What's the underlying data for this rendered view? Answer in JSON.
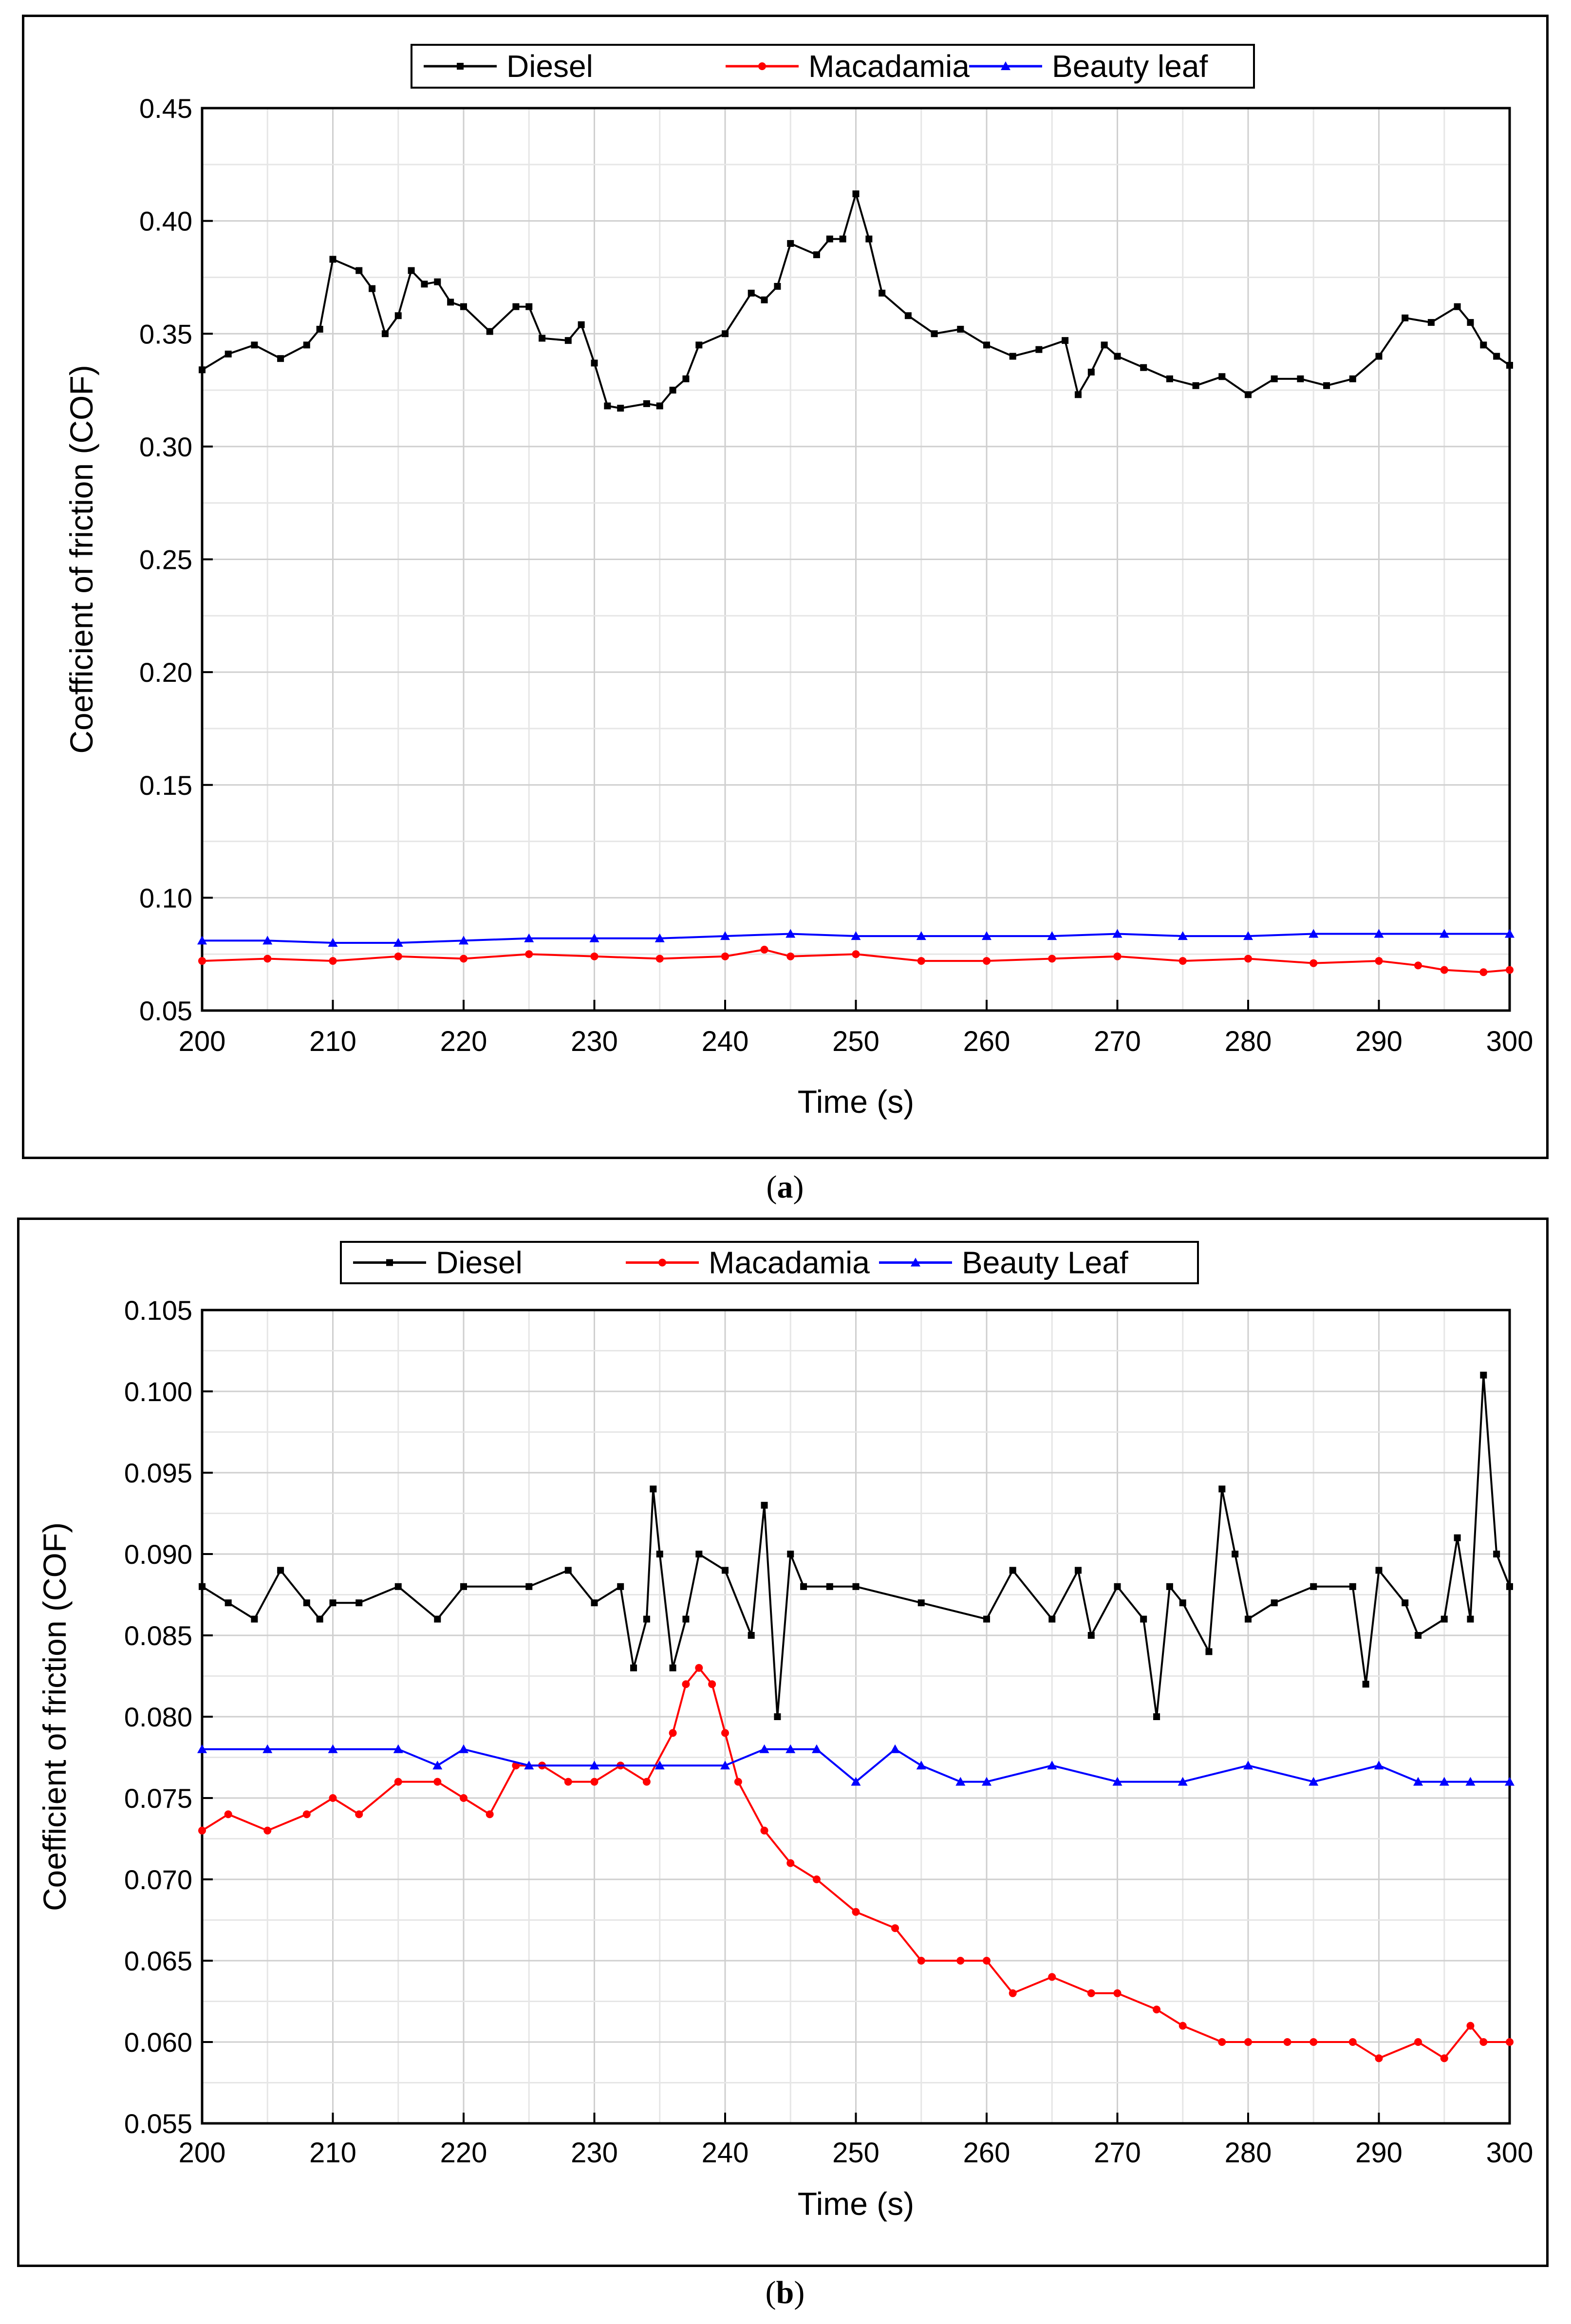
{
  "panels": [
    {
      "sublabel": "a",
      "chart_data": {
        "type": "line",
        "title": "",
        "xlabel": "Time (s)",
        "ylabel": "Coefficient of friction (COF)",
        "xlim": [
          200,
          300
        ],
        "ylim": [
          0.05,
          0.45
        ],
        "xticks": [
          "200",
          "210",
          "220",
          "230",
          "240",
          "250",
          "260",
          "270",
          "280",
          "290",
          "300"
        ],
        "yticks": [
          "0.05",
          "0.10",
          "0.15",
          "0.20",
          "0.25",
          "0.30",
          "0.35",
          "0.40",
          "0.45"
        ],
        "legend_placement": "top-center",
        "grid": true,
        "series": [
          {
            "name": "Diesel",
            "color": "#000000",
            "marker": "square",
            "x": [
              200,
              202,
              204,
              206,
              208,
              209,
              210,
              212,
              213,
              214,
              215,
              216,
              217,
              218,
              219,
              220,
              222,
              224,
              225,
              226,
              228,
              229,
              230,
              231,
              232,
              234,
              235,
              236,
              237,
              238,
              240,
              242,
              243,
              244,
              245,
              247,
              248,
              249,
              250,
              251,
              252,
              254,
              256,
              258,
              260,
              262,
              264,
              266,
              267,
              268,
              269,
              270,
              272,
              274,
              276,
              278,
              280,
              282,
              284,
              286,
              288,
              290,
              292,
              294,
              296,
              297,
              298,
              299,
              300
            ],
            "y": [
              0.334,
              0.341,
              0.345,
              0.339,
              0.345,
              0.352,
              0.383,
              0.378,
              0.37,
              0.35,
              0.358,
              0.378,
              0.372,
              0.373,
              0.364,
              0.362,
              0.351,
              0.362,
              0.362,
              0.348,
              0.347,
              0.354,
              0.337,
              0.318,
              0.317,
              0.319,
              0.318,
              0.325,
              0.33,
              0.345,
              0.35,
              0.368,
              0.365,
              0.371,
              0.39,
              0.385,
              0.392,
              0.392,
              0.412,
              0.392,
              0.368,
              0.358,
              0.35,
              0.352,
              0.345,
              0.34,
              0.343,
              0.347,
              0.323,
              0.333,
              0.345,
              0.34,
              0.335,
              0.33,
              0.327,
              0.331,
              0.323,
              0.33,
              0.33,
              0.327,
              0.33,
              0.34,
              0.357,
              0.355,
              0.362,
              0.355,
              0.345,
              0.34,
              0.336
            ]
          },
          {
            "name": "Macadamia",
            "color": "#ff0000",
            "marker": "circle",
            "x": [
              200,
              205,
              210,
              215,
              220,
              225,
              230,
              235,
              240,
              243,
              245,
              250,
              255,
              260,
              265,
              270,
              275,
              280,
              285,
              290,
              293,
              295,
              298,
              300
            ],
            "y": [
              0.072,
              0.073,
              0.072,
              0.074,
              0.073,
              0.075,
              0.074,
              0.073,
              0.074,
              0.077,
              0.074,
              0.075,
              0.072,
              0.072,
              0.073,
              0.074,
              0.072,
              0.073,
              0.071,
              0.072,
              0.07,
              0.068,
              0.067,
              0.068
            ]
          },
          {
            "name": "Beauty leaf",
            "color": "#0000ff",
            "marker": "triangle",
            "x": [
              200,
              205,
              210,
              215,
              220,
              225,
              230,
              235,
              240,
              245,
              250,
              255,
              260,
              265,
              270,
              275,
              280,
              285,
              290,
              295,
              300
            ],
            "y": [
              0.081,
              0.081,
              0.08,
              0.08,
              0.081,
              0.082,
              0.082,
              0.082,
              0.083,
              0.084,
              0.083,
              0.083,
              0.083,
              0.083,
              0.084,
              0.083,
              0.083,
              0.084,
              0.084,
              0.084,
              0.084
            ]
          }
        ]
      }
    },
    {
      "sublabel": "b",
      "chart_data": {
        "type": "line",
        "title": "",
        "xlabel": "Time (s)",
        "ylabel": "Coefficient of friction (COF)",
        "xlim": [
          200,
          300
        ],
        "ylim": [
          0.055,
          0.105
        ],
        "xticks": [
          "200",
          "210",
          "220",
          "230",
          "240",
          "250",
          "260",
          "270",
          "280",
          "290",
          "300"
        ],
        "yticks": [
          "0.055",
          "0.060",
          "0.065",
          "0.070",
          "0.075",
          "0.080",
          "0.085",
          "0.090",
          "0.095",
          "0.100",
          "0.105"
        ],
        "legend_placement": "top-center",
        "grid": true,
        "series": [
          {
            "name": "Diesel",
            "color": "#000000",
            "marker": "square",
            "x": [
              200,
              202,
              204,
              206,
              208,
              209,
              210,
              212,
              215,
              218,
              220,
              225,
              228,
              230,
              232,
              233,
              234,
              234.5,
              235,
              236,
              237,
              238,
              240,
              242,
              243,
              244,
              245,
              246,
              248,
              250,
              255,
              260,
              262,
              265,
              267,
              268,
              270,
              272,
              273,
              274,
              275,
              277,
              278,
              279,
              280,
              282,
              285,
              288,
              289,
              290,
              292,
              293,
              295,
              296,
              297,
              298,
              299,
              300
            ],
            "y": [
              0.088,
              0.087,
              0.086,
              0.089,
              0.087,
              0.086,
              0.087,
              0.087,
              0.088,
              0.086,
              0.088,
              0.088,
              0.089,
              0.087,
              0.088,
              0.083,
              0.086,
              0.094,
              0.09,
              0.083,
              0.086,
              0.09,
              0.089,
              0.085,
              0.093,
              0.08,
              0.09,
              0.088,
              0.088,
              0.088,
              0.087,
              0.086,
              0.089,
              0.086,
              0.089,
              0.085,
              0.088,
              0.086,
              0.08,
              0.088,
              0.087,
              0.084,
              0.094,
              0.09,
              0.086,
              0.087,
              0.088,
              0.088,
              0.082,
              0.089,
              0.087,
              0.085,
              0.086,
              0.091,
              0.086,
              0.101,
              0.09,
              0.088
            ]
          },
          {
            "name": "Macadamia",
            "color": "#ff0000",
            "marker": "circle",
            "x": [
              200,
              202,
              205,
              208,
              210,
              212,
              215,
              218,
              220,
              222,
              224,
              226,
              228,
              230,
              232,
              234,
              236,
              237,
              238,
              239,
              240,
              241,
              243,
              245,
              247,
              250,
              253,
              255,
              258,
              260,
              262,
              265,
              268,
              270,
              273,
              275,
              278,
              280,
              283,
              285,
              288,
              290,
              293,
              295,
              297,
              298,
              300
            ],
            "y": [
              0.073,
              0.074,
              0.073,
              0.074,
              0.075,
              0.074,
              0.076,
              0.076,
              0.075,
              0.074,
              0.077,
              0.077,
              0.076,
              0.076,
              0.077,
              0.076,
              0.079,
              0.082,
              0.083,
              0.082,
              0.079,
              0.076,
              0.073,
              0.071,
              0.07,
              0.068,
              0.067,
              0.065,
              0.065,
              0.065,
              0.063,
              0.064,
              0.063,
              0.063,
              0.062,
              0.061,
              0.06,
              0.06,
              0.06,
              0.06,
              0.06,
              0.059,
              0.06,
              0.059,
              0.061,
              0.06,
              0.06
            ]
          },
          {
            "name": "Beauty Leaf",
            "color": "#0000ff",
            "marker": "triangle",
            "x": [
              200,
              205,
              210,
              215,
              218,
              220,
              225,
              230,
              235,
              240,
              243,
              245,
              247,
              250,
              253,
              255,
              258,
              260,
              265,
              270,
              275,
              280,
              285,
              290,
              293,
              295,
              297,
              300
            ],
            "y": [
              0.078,
              0.078,
              0.078,
              0.078,
              0.077,
              0.078,
              0.077,
              0.077,
              0.077,
              0.077,
              0.078,
              0.078,
              0.078,
              0.076,
              0.078,
              0.077,
              0.076,
              0.076,
              0.077,
              0.076,
              0.076,
              0.077,
              0.076,
              0.077,
              0.076,
              0.076,
              0.076,
              0.076
            ]
          }
        ]
      }
    }
  ]
}
